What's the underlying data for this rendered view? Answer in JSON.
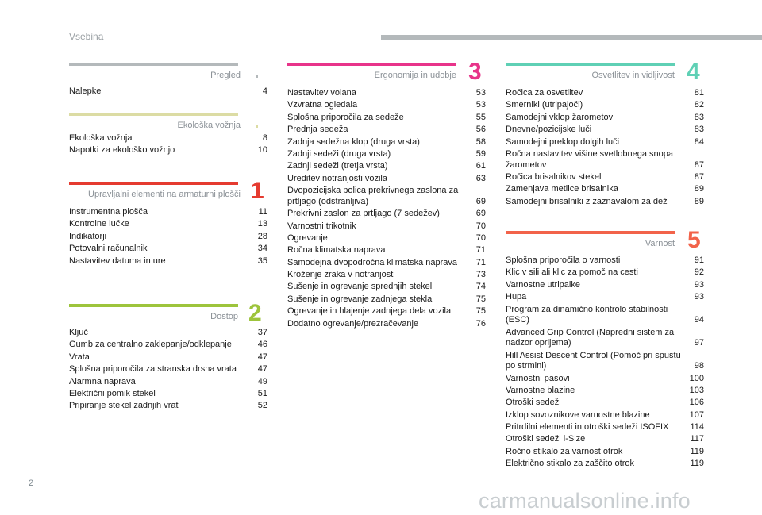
{
  "header": {
    "title": "Vsebina"
  },
  "page_number": "2",
  "watermark": "carmanualsonline.info",
  "colors": {
    "gray": "#b4b9bb",
    "olive": "#dcdca4",
    "red": "#e53b30",
    "green": "#9dc43c",
    "pink": "#e8348a",
    "teal": "#5fd0b5",
    "orange": "#f2634a"
  },
  "sections": {
    "pregled": {
      "title": "Pregled",
      "items": [
        {
          "label": "Nalepke",
          "page": "4"
        }
      ]
    },
    "ekoloska": {
      "title": "Ekološka vožnja",
      "items": [
        {
          "label": "Ekološka vožnja",
          "page": "8"
        },
        {
          "label": "Napotki za ekološko vožnjo",
          "page": "10"
        }
      ]
    },
    "s1": {
      "number": "1",
      "title": "Upravljalni elementi na armaturni plošči",
      "items": [
        {
          "label": "Instrumentna plošča",
          "page": "11"
        },
        {
          "label": "Kontrolne lučke",
          "page": "13"
        },
        {
          "label": "Indikatorji",
          "page": "28"
        },
        {
          "label": "Potovalni računalnik",
          "page": "34"
        },
        {
          "label": "Nastavitev datuma in ure",
          "page": "35"
        }
      ]
    },
    "s2": {
      "number": "2",
      "title": "Dostop",
      "items": [
        {
          "label": "Ključ",
          "page": "37"
        },
        {
          "label": "Gumb za centralno zaklepanje/odklepanje",
          "page": "46"
        },
        {
          "label": "Vrata",
          "page": "47"
        },
        {
          "label": "Splošna priporočila za stranska drsna vrata",
          "page": "47"
        },
        {
          "label": "Alarmna naprava",
          "page": "49"
        },
        {
          "label": "Električni pomik stekel",
          "page": "51"
        },
        {
          "label": "Pripiranje stekel zadnjih vrat",
          "page": "52"
        }
      ]
    },
    "s3": {
      "number": "3",
      "title": "Ergonomija in udobje",
      "items": [
        {
          "label": "Nastavitev volana",
          "page": "53"
        },
        {
          "label": "Vzvratna ogledala",
          "page": "53"
        },
        {
          "label": "Splošna priporočila za sedeže",
          "page": "55"
        },
        {
          "label": "Prednja sedeža",
          "page": "56"
        },
        {
          "label": "Zadnja sedežna klop (druga vrsta)",
          "page": "58"
        },
        {
          "label": "Zadnji sedeži (druga vrsta)",
          "page": "59"
        },
        {
          "label": "Zadnji sedeži (tretja vrsta)",
          "page": "61"
        },
        {
          "label": "Ureditev notranjosti vozila",
          "page": "63"
        },
        {
          "label": "Dvopozicijska polica prekrivnega zaslona za prtljago (odstranljiva)",
          "page": "69"
        },
        {
          "label": "Prekrivni zaslon za prtljago (7 sedežev)",
          "page": "69"
        },
        {
          "label": "Varnostni trikotnik",
          "page": "70"
        },
        {
          "label": "Ogrevanje",
          "page": "70"
        },
        {
          "label": "Ročna klimatska naprava",
          "page": "71"
        },
        {
          "label": "Samodejna dvopodročna klimatska naprava",
          "page": "71"
        },
        {
          "label": "Kroženje zraka v notranjosti",
          "page": "73"
        },
        {
          "label": "Sušenje in ogrevanje sprednjih stekel",
          "page": "74"
        },
        {
          "label": "Sušenje in ogrevanje zadnjega stekla",
          "page": "75"
        },
        {
          "label": "Ogrevanje in hlajenje zadnjega dela vozila",
          "page": "75"
        },
        {
          "label": "Dodatno ogrevanje/prezračevanje",
          "page": "76"
        }
      ]
    },
    "s4": {
      "number": "4",
      "title": "Osvetlitev in vidljivost",
      "items": [
        {
          "label": "Ročica za osvetlitev",
          "page": "81"
        },
        {
          "label": "Smerniki (utripajoči)",
          "page": "82"
        },
        {
          "label": "Samodejni vklop žarometov",
          "page": "83"
        },
        {
          "label": "Dnevne/pozicijske luči",
          "page": "83"
        },
        {
          "label": "Samodejni preklop dolgih luči",
          "page": "84"
        },
        {
          "label": "Ročna nastavitev višine svetlobnega snopa žarometov",
          "page": "87"
        },
        {
          "label": "Ročica brisalnikov stekel",
          "page": "87"
        },
        {
          "label": "Zamenjava metlice brisalnika",
          "page": "89"
        },
        {
          "label": "Samodejni brisalniki z zaznavalom za dež",
          "page": "89"
        }
      ]
    },
    "s5": {
      "number": "5",
      "title": "Varnost",
      "items": [
        {
          "label": "Splošna priporočila o varnosti",
          "page": "91"
        },
        {
          "label": "Klic v sili ali klic za pomoč na cesti",
          "page": "92"
        },
        {
          "label": "Varnostne utripalke",
          "page": "93"
        },
        {
          "label": "Hupa",
          "page": "93"
        },
        {
          "label": "Program za dinamično kontrolo stabilnosti (ESC)",
          "page": "94"
        },
        {
          "label": "Advanced Grip Control (Napredni sistem za nadzor oprijema)",
          "page": "97"
        },
        {
          "label": "Hill Assist Descent Control (Pomoč pri spustu po strmini)",
          "page": "98"
        },
        {
          "label": "Varnostni pasovi",
          "page": "100"
        },
        {
          "label": "Varnostne blazine",
          "page": "103"
        },
        {
          "label": "Otroški sedeži",
          "page": "106"
        },
        {
          "label": "Izklop sovoznikove varnostne blazine",
          "page": "107"
        },
        {
          "label": "Pritrdilni elementi in otroški sedeži ISOFIX",
          "page": "114"
        },
        {
          "label": "Otroški sedeži i-Size",
          "page": "117"
        },
        {
          "label": "Ročno stikalo za varnost otrok",
          "page": "119"
        },
        {
          "label": "Električno stikalo za zaščito otrok",
          "page": "119"
        }
      ]
    }
  }
}
